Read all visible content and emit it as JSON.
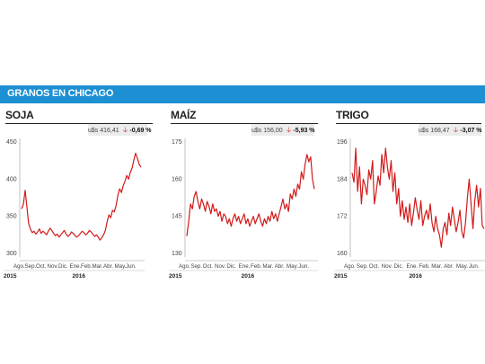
{
  "header": {
    "title": "GRANOS EN CHICAGO"
  },
  "colors": {
    "banner": "#1d8fd3",
    "line": "#d21a1a",
    "down_arrow": "#d21a1a"
  },
  "chart_data": [
    {
      "type": "line",
      "title": "SOJA",
      "price_label": "u$s 416,41",
      "change_label": "-0,69 %",
      "trend_icon": "down-arrow-icon",
      "ylim": [
        300,
        450
      ],
      "yticks": [
        300,
        350,
        400,
        450
      ],
      "xticks": [
        "Ago.",
        "Sep.",
        "Oct.",
        "Nov.",
        "Dic.",
        "Ene.",
        "Feb.",
        "Mar.",
        "Abr.",
        "May.",
        "Jun."
      ],
      "years": [
        "2015",
        "2016"
      ],
      "series": [
        {
          "values": [
            360,
            366,
            385,
            362,
            340,
            333,
            328,
            330,
            326,
            329,
            333,
            327,
            330,
            328,
            325,
            330,
            334,
            331,
            327,
            324,
            326,
            322,
            325,
            328,
            331,
            326,
            323,
            325,
            329,
            327,
            324,
            322,
            324,
            327,
            330,
            328,
            325,
            327,
            331,
            329,
            326,
            323,
            325,
            322,
            318,
            321,
            325,
            331,
            343,
            352,
            348,
            358,
            356,
            364,
            378,
            387,
            382,
            391,
            397,
            405,
            400,
            409,
            415,
            426,
            435,
            428,
            420,
            416
          ]
        }
      ]
    },
    {
      "type": "line",
      "title": "MAÍZ",
      "price_label": "u$s 156,00",
      "change_label": "-5,93 %",
      "trend_icon": "down-arrow-icon",
      "ylim": [
        130,
        175
      ],
      "yticks": [
        130,
        145,
        160,
        175
      ],
      "xticks": [
        "Ago.",
        "Sep.",
        "Oct.",
        "Nov.",
        "Dic.",
        "Ene.",
        "Feb.",
        "Mar.",
        "Abr.",
        "May.",
        "Jun."
      ],
      "years": [
        "2015",
        "2016"
      ],
      "series": [
        {
          "values": [
            137,
            143,
            150,
            148,
            153,
            155,
            151,
            148,
            152,
            150,
            147,
            151,
            149,
            146,
            150,
            147,
            148,
            145,
            147,
            143,
            146,
            145,
            142,
            144,
            141,
            144,
            146,
            143,
            145,
            142,
            144,
            146,
            142,
            144,
            141,
            143,
            145,
            142,
            144,
            146,
            143,
            141,
            144,
            142,
            145,
            143,
            147,
            144,
            146,
            143,
            146,
            149,
            152,
            148,
            150,
            147,
            154,
            152,
            156,
            153,
            158,
            156,
            163,
            160,
            166,
            170,
            167,
            169,
            160,
            156
          ]
        }
      ]
    },
    {
      "type": "line",
      "title": "TRIGO",
      "price_label": "u$s 168,47",
      "change_label": "-3,07 %",
      "trend_icon": "down-arrow-icon",
      "ylim": [
        160,
        196
      ],
      "yticks": [
        160,
        172,
        184,
        196
      ],
      "xticks": [
        "Ago.",
        "Sep.",
        "Oct.",
        "Nov.",
        "Dic.",
        "Ene.",
        "Feb.",
        "Mar.",
        "Abr.",
        "May.",
        "Jun."
      ],
      "years": [
        "2015",
        "2016"
      ],
      "series": [
        {
          "values": [
            186,
            183,
            194,
            180,
            188,
            176,
            184,
            182,
            179,
            187,
            184,
            190,
            176,
            180,
            185,
            182,
            192,
            186,
            194,
            188,
            184,
            190,
            180,
            186,
            176,
            181,
            172,
            177,
            171,
            175,
            170,
            176,
            169,
            173,
            178,
            174,
            171,
            177,
            169,
            172,
            174,
            171,
            176,
            170,
            167,
            172,
            168,
            166,
            162,
            168,
            170,
            166,
            173,
            169,
            175,
            171,
            167,
            170,
            174,
            167,
            165,
            170,
            178,
            184,
            176,
            168,
            177,
            182,
            175,
            181,
            169,
            168
          ]
        }
      ]
    }
  ]
}
